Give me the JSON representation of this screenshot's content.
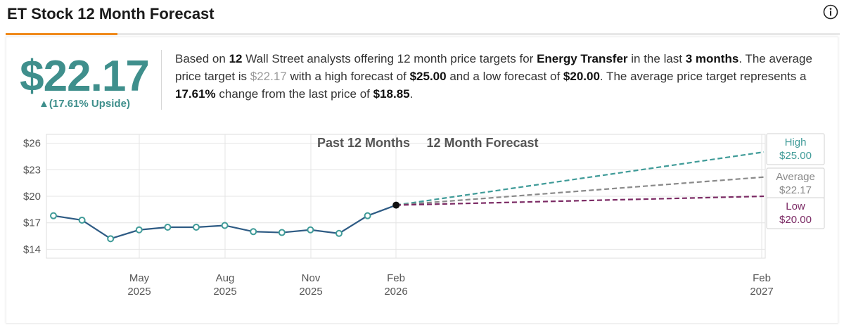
{
  "header": {
    "title": "ET Stock 12 Month Forecast"
  },
  "icons": {
    "info": "info-icon"
  },
  "summary": {
    "price": "$22.17",
    "upside": "▲(17.61% Upside)",
    "t1": "Based on ",
    "analyst_count": "12",
    "t2": " Wall Street analysts offering 12 month price targets for ",
    "company": "Energy Transfer",
    "t3": " in the last ",
    "period": "3 months",
    "t4": ". The average price target is ",
    "avg": "$22.17",
    "t5": " with a high forecast of ",
    "high": "$25.00",
    "t6": " and a low forecast of ",
    "low": "$20.00",
    "t7": ". The average price target represents a ",
    "change": "17.61%",
    "t8": " change from the last price of ",
    "last": "$18.85",
    "t9": "."
  },
  "colors": {
    "history": "#2e5b84",
    "high": "#3f9b98",
    "average": "#8a8a8a",
    "low": "#7b2a64",
    "accent": "#f08a1c",
    "price": "#3f8f8c"
  },
  "chart_data": {
    "type": "line",
    "section_labels": [
      "Past 12 Months",
      "12 Month Forecast"
    ],
    "y_ticks": [
      14,
      17,
      20,
      23,
      26
    ],
    "y_tick_labels": [
      "$14",
      "$17",
      "$20",
      "$23",
      "$26"
    ],
    "ylim": [
      13,
      27
    ],
    "x_ticks": [
      {
        "month": "May",
        "year": "2025"
      },
      {
        "month": "Aug",
        "year": "2025"
      },
      {
        "month": "Nov",
        "year": "2025"
      },
      {
        "month": "Feb",
        "year": "2026"
      },
      {
        "month": "Feb",
        "year": "2027"
      }
    ],
    "series": [
      {
        "values": [
          17.8,
          17.3,
          15.2,
          16.2,
          16.5,
          16.5,
          16.7,
          16.0,
          15.9,
          16.2,
          15.8,
          17.8,
          19.0
        ]
      }
    ],
    "forecast": {
      "start": 19.0,
      "high": 25.0,
      "average": 22.17,
      "low": 20.0,
      "labels": [
        {
          "name": "High",
          "value": "$25.00"
        },
        {
          "name": "Average",
          "value": "$22.17"
        },
        {
          "name": "Low",
          "value": "$20.00"
        }
      ]
    }
  }
}
